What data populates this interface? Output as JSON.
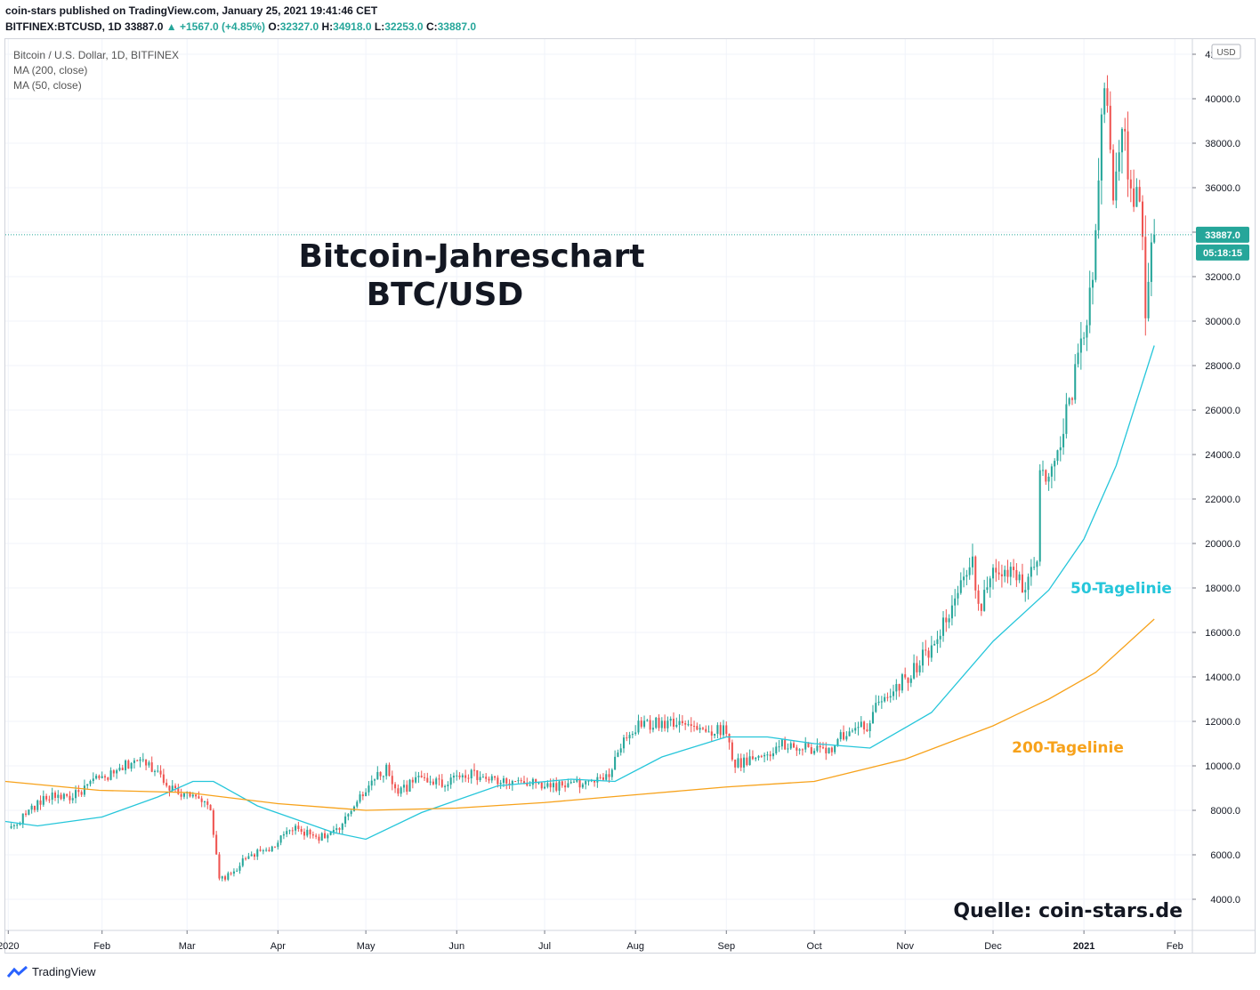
{
  "header": {
    "publisher_line": "coin-stars published on TradingView.com, January 25, 2021 19:41:46 CET",
    "symbol": "BITFINEX:BTCUSD, 1D",
    "last": "33887.0",
    "change": "+1567.0 (+4.85%)",
    "o_label": "O:",
    "o": "32327.0",
    "h_label": "H:",
    "h": "34918.0",
    "l_label": "L:",
    "l": "32253.0",
    "c_label": "C:",
    "c": "33887.0"
  },
  "legend": {
    "title": "Bitcoin / U.S. Dollar, 1D, BITFINEX",
    "ma200": "MA (200, close)",
    "ma50": "MA (50, close)"
  },
  "annotations": {
    "title_line1": "Bitcoin-Jahreschart",
    "title_line2": "BTC/USD",
    "ma50_label": "50-Tagelinie",
    "ma200_label": "200-Tagelinie",
    "source": "Quelle: coin-stars.de"
  },
  "price_tags": {
    "last_price": "33887.0",
    "countdown": "05:18:15",
    "currency": "USD"
  },
  "footer": {
    "brand": "TradingView"
  },
  "colors": {
    "up": "#26a69a",
    "down": "#ef5350",
    "ma50": "#26c6da",
    "ma200": "#f7a21b",
    "tag": "#26a69a"
  },
  "chart_data": {
    "type": "candlestick",
    "y_ticks": [
      "4000.0",
      "6000.0",
      "8000.0",
      "10000.0",
      "12000.0",
      "14000.0",
      "16000.0",
      "18000.0",
      "20000.0",
      "22000.0",
      "24000.0",
      "26000.0",
      "28000.0",
      "30000.0",
      "32000.0",
      "34000.0",
      "36000.0",
      "38000.0",
      "40000.0",
      "42000.0"
    ],
    "x_ticks": [
      "2020",
      "Feb",
      "Mar",
      "Apr",
      "May",
      "Jun",
      "Jul",
      "Aug",
      "Sep",
      "Oct",
      "Nov",
      "Dec",
      "2021",
      "Feb"
    ],
    "ylim": [
      2000,
      44000
    ],
    "xlim": [
      "2019-12-30",
      "2021-02-07"
    ],
    "close_path": [
      [
        "2020-01-01",
        7200
      ],
      [
        "2020-01-08",
        8100
      ],
      [
        "2020-01-15",
        8700
      ],
      [
        "2020-01-22",
        8600
      ],
      [
        "2020-01-29",
        9300
      ],
      [
        "2020-02-05",
        9600
      ],
      [
        "2020-02-12",
        10300
      ],
      [
        "2020-02-19",
        9900
      ],
      [
        "2020-02-26",
        8800
      ],
      [
        "2020-03-04",
        8800
      ],
      [
        "2020-03-09",
        7900
      ],
      [
        "2020-03-12",
        4900
      ],
      [
        "2020-03-16",
        5100
      ],
      [
        "2020-03-22",
        6000
      ],
      [
        "2020-03-29",
        6200
      ],
      [
        "2020-04-06",
        7200
      ],
      [
        "2020-04-15",
        6800
      ],
      [
        "2020-04-22",
        7100
      ],
      [
        "2020-04-29",
        8700
      ],
      [
        "2020-05-08",
        9900
      ],
      [
        "2020-05-12",
        8800
      ],
      [
        "2020-05-20",
        9500
      ],
      [
        "2020-05-27",
        9200
      ],
      [
        "2020-06-03",
        9700
      ],
      [
        "2020-06-15",
        9300
      ],
      [
        "2020-06-25",
        9200
      ],
      [
        "2020-07-05",
        9100
      ],
      [
        "2020-07-15",
        9200
      ],
      [
        "2020-07-22",
        9400
      ],
      [
        "2020-07-28",
        11100
      ],
      [
        "2020-08-02",
        11800
      ],
      [
        "2020-08-10",
        11900
      ],
      [
        "2020-08-17",
        12100
      ],
      [
        "2020-08-24",
        11500
      ],
      [
        "2020-08-31",
        11700
      ],
      [
        "2020-09-04",
        10100
      ],
      [
        "2020-09-12",
        10400
      ],
      [
        "2020-09-20",
        10900
      ],
      [
        "2020-09-28",
        10800
      ],
      [
        "2020-10-05",
        10600
      ],
      [
        "2020-10-12",
        11500
      ],
      [
        "2020-10-19",
        11800
      ],
      [
        "2020-10-22",
        12900
      ],
      [
        "2020-10-29",
        13500
      ],
      [
        "2020-11-05",
        14500
      ],
      [
        "2020-11-12",
        15800
      ],
      [
        "2020-11-19",
        17800
      ],
      [
        "2020-11-24",
        19000
      ],
      [
        "2020-11-26",
        17000
      ],
      [
        "2020-12-01",
        19000
      ],
      [
        "2020-12-08",
        18500
      ],
      [
        "2020-12-12",
        18000
      ],
      [
        "2020-12-16",
        19500
      ],
      [
        "2020-12-17",
        22800
      ],
      [
        "2020-12-22",
        23500
      ],
      [
        "2020-12-27",
        26300
      ],
      [
        "2021-01-01",
        29300
      ],
      [
        "2021-01-04",
        32000
      ],
      [
        "2021-01-08",
        40500
      ],
      [
        "2021-01-11",
        35500
      ],
      [
        "2021-01-14",
        38500
      ],
      [
        "2021-01-17",
        35800
      ],
      [
        "2021-01-20",
        35500
      ],
      [
        "2021-01-22",
        30800
      ],
      [
        "2021-01-25",
        33887
      ]
    ],
    "series": [
      {
        "name": "MA (50, close)",
        "points": [
          [
            "2019-12-30",
            7500
          ],
          [
            "2020-01-10",
            7300
          ],
          [
            "2020-02-01",
            7700
          ],
          [
            "2020-02-20",
            8600
          ],
          [
            "2020-03-03",
            9300
          ],
          [
            "2020-03-10",
            9300
          ],
          [
            "2020-03-25",
            8200
          ],
          [
            "2020-04-20",
            7000
          ],
          [
            "2020-05-01",
            6700
          ],
          [
            "2020-05-20",
            7900
          ],
          [
            "2020-06-15",
            9100
          ],
          [
            "2020-07-10",
            9400
          ],
          [
            "2020-07-25",
            9300
          ],
          [
            "2020-08-10",
            10400
          ],
          [
            "2020-09-01",
            11300
          ],
          [
            "2020-09-15",
            11300
          ],
          [
            "2020-10-01",
            11000
          ],
          [
            "2020-10-20",
            10800
          ],
          [
            "2020-11-10",
            12400
          ],
          [
            "2020-12-01",
            15600
          ],
          [
            "2020-12-20",
            17900
          ],
          [
            "2021-01-01",
            20200
          ],
          [
            "2021-01-12",
            23500
          ],
          [
            "2021-01-25",
            28900
          ]
        ]
      },
      {
        "name": "MA (200, close)",
        "points": [
          [
            "2019-12-30",
            9300
          ],
          [
            "2020-01-31",
            8900
          ],
          [
            "2020-03-01",
            8800
          ],
          [
            "2020-04-01",
            8300
          ],
          [
            "2020-05-01",
            8000
          ],
          [
            "2020-06-01",
            8100
          ],
          [
            "2020-07-01",
            8350
          ],
          [
            "2020-08-01",
            8700
          ],
          [
            "2020-09-01",
            9050
          ],
          [
            "2020-10-01",
            9300
          ],
          [
            "2020-11-01",
            10300
          ],
          [
            "2020-12-01",
            11800
          ],
          [
            "2020-12-20",
            13000
          ],
          [
            "2021-01-05",
            14200
          ],
          [
            "2021-01-25",
            16600
          ]
        ]
      }
    ]
  }
}
